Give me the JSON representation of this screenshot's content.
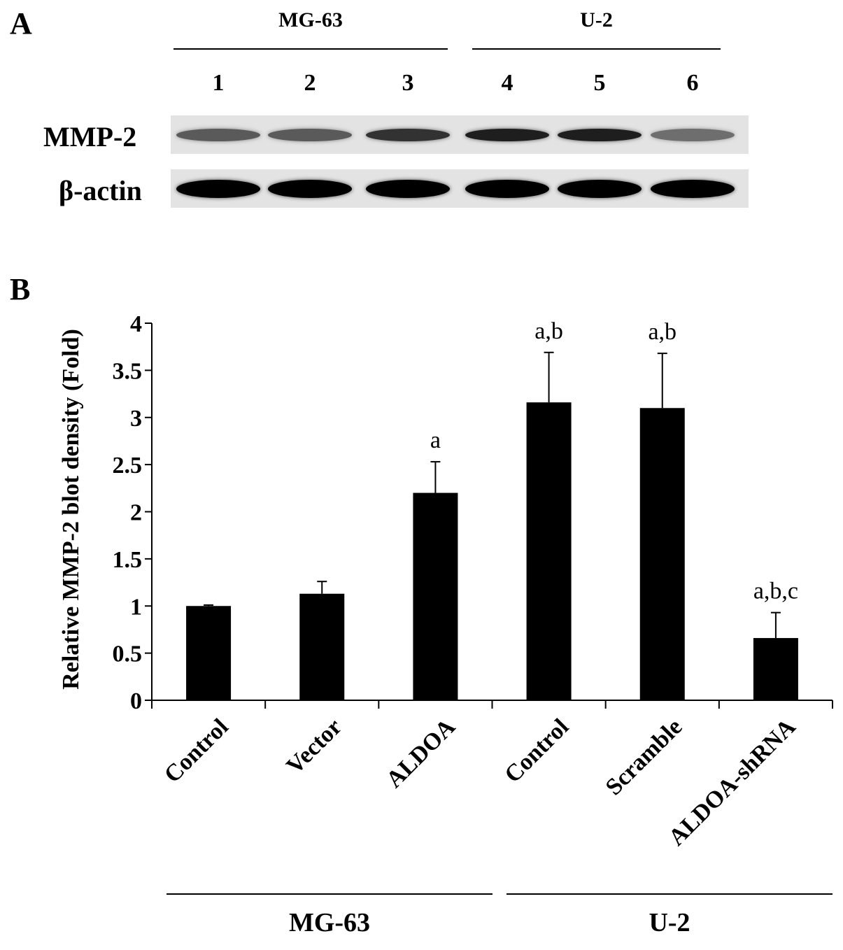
{
  "panel_a": {
    "label": "A",
    "groups": [
      "MG-63",
      "U-2"
    ],
    "lanes": [
      "1",
      "2",
      "3",
      "4",
      "5",
      "6"
    ],
    "rows": [
      {
        "label": "MMP-2",
        "intensity": [
          0.55,
          0.55,
          0.75,
          0.85,
          0.85,
          0.45
        ]
      },
      {
        "label": "β-actin",
        "intensity": [
          1,
          1,
          1,
          1,
          1,
          1
        ]
      }
    ]
  },
  "panel_b": {
    "label": "B",
    "groups": [
      "MG-63",
      "U-2"
    ]
  },
  "chart_data": {
    "type": "bar",
    "ylabel": "Relative MMP-2 blot density (Fold)",
    "ylim": [
      0,
      4
    ],
    "yticks": [
      "0",
      "0.5",
      "1",
      "1.5",
      "2",
      "2.5",
      "3",
      "3.5",
      "4"
    ],
    "categories": [
      "Control",
      "Vector",
      "ALDOA",
      "Control",
      "Scramble",
      "ALDOA-shRNA"
    ],
    "values": [
      1.0,
      1.13,
      2.2,
      3.16,
      3.1,
      0.66
    ],
    "errors": [
      0.01,
      0.13,
      0.33,
      0.53,
      0.58,
      0.27
    ],
    "annotations": [
      "",
      "",
      "a",
      "a,b",
      "a,b",
      "a,b,c"
    ],
    "bar_color": "#000000"
  }
}
